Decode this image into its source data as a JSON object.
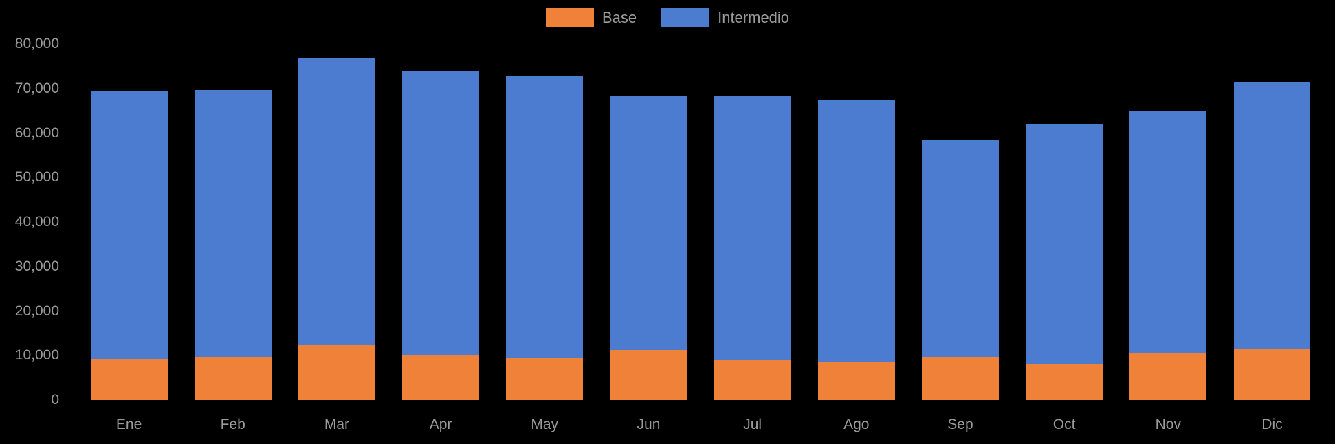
{
  "chart_data": {
    "type": "bar",
    "stacked": true,
    "title": "",
    "xlabel": "",
    "ylabel": "",
    "legend_position": "top-center",
    "grid": false,
    "ylim": [
      0,
      80000
    ],
    "categories": [
      "Ene",
      "Feb",
      "Mar",
      "Apr",
      "May",
      "Jun",
      "Jul",
      "Ago",
      "Sep",
      "Oct",
      "Nov",
      "Dic"
    ],
    "series": [
      {
        "name": "Base",
        "color": "#F08138",
        "values": [
          9200,
          9700,
          12400,
          10000,
          9400,
          11200,
          9000,
          8700,
          9800,
          8100,
          10500,
          11400
        ]
      },
      {
        "name": "Intermedio",
        "color": "#4C7CCF",
        "values": [
          60200,
          60000,
          64500,
          64000,
          63300,
          57000,
          59300,
          58800,
          48700,
          53900,
          54500,
          60000
        ]
      }
    ],
    "totals": [
      69400,
      69700,
      76900,
      74000,
      72700,
      68200,
      68300,
      67500,
      58500,
      62000,
      65000,
      71400
    ],
    "yticks": [
      {
        "value": 0,
        "label": "0"
      },
      {
        "value": 10000,
        "label": "10,000"
      },
      {
        "value": 20000,
        "label": "20,000"
      },
      {
        "value": 30000,
        "label": "30,000"
      },
      {
        "value": 40000,
        "label": "40,000"
      },
      {
        "value": 50000,
        "label": "50,000"
      },
      {
        "value": 60000,
        "label": "60,000"
      },
      {
        "value": 70000,
        "label": "70,000"
      },
      {
        "value": 80000,
        "label": "80,000"
      }
    ],
    "colors": {
      "background": "#000000",
      "text": "#9a9a9a"
    }
  }
}
